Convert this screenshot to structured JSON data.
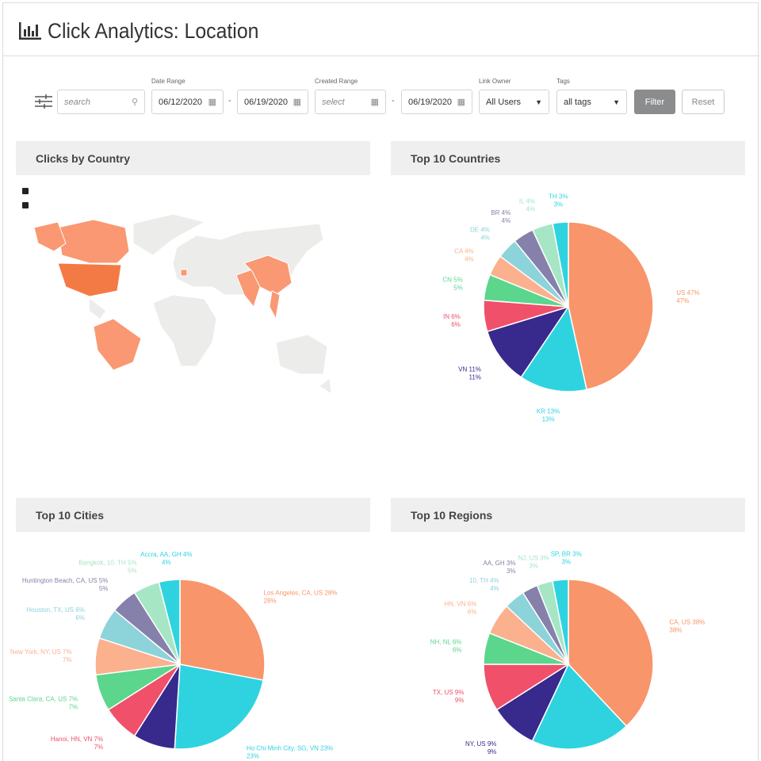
{
  "header": {
    "title": "Click Analytics: Location"
  },
  "filters": {
    "search_placeholder": "search",
    "date_range_label": "Date Range",
    "date_from": "06/12/2020",
    "date_to": "06/19/2020",
    "created_range_label": "Created Range",
    "created_from_placeholder": "select",
    "created_to": "06/19/2020",
    "link_owner_label": "Link Owner",
    "link_owner_value": "All Users",
    "tags_label": "Tags",
    "tags_value": "all tags",
    "filter_button": "Filter",
    "reset_button": "Reset",
    "separator": "-"
  },
  "panels": {
    "map": "Clicks by Country",
    "countries": "Top 10 Countries",
    "cities": "Top 10 Cities",
    "regions": "Top 10 Regions"
  },
  "colors": [
    "#f8956a",
    "#2fd3e0",
    "#38298c",
    "#f0506a",
    "#5bd68c",
    "#fbb08e",
    "#8dd3da",
    "#8581ab",
    "#a6e6c5",
    "#2fd3e0"
  ],
  "chart_data": [
    {
      "id": "countries",
      "type": "pie",
      "title": "Top 10 Countries",
      "slices": [
        {
          "label": "US",
          "value": 47
        },
        {
          "label": "KR",
          "value": 13
        },
        {
          "label": "VN",
          "value": 11
        },
        {
          "label": "IN",
          "value": 6
        },
        {
          "label": "CN",
          "value": 5
        },
        {
          "label": "CA",
          "value": 4
        },
        {
          "label": "DE",
          "value": 4
        },
        {
          "label": "BR",
          "value": 4
        },
        {
          "label": "IL",
          "value": 4
        },
        {
          "label": "TH",
          "value": 3
        }
      ]
    },
    {
      "id": "cities",
      "type": "pie",
      "title": "Top 10 Cities",
      "slices": [
        {
          "label": "Los Angeles, CA, US",
          "value": 28
        },
        {
          "label": "Ho Chi Minh City, SG, VN",
          "value": 23
        },
        {
          "label": "",
          "value": 8
        },
        {
          "label": "Hanoi, HN, VN",
          "value": 7
        },
        {
          "label": "Santa Clara, CA, US",
          "value": 7
        },
        {
          "label": "New York, NY, US",
          "value": 7
        },
        {
          "label": "Houston, TX, US",
          "value": 6
        },
        {
          "label": "Huntington Beach, CA, US",
          "value": 5
        },
        {
          "label": "Bangkok, 10, TH",
          "value": 5
        },
        {
          "label": "Accra, AA, GH",
          "value": 4
        }
      ]
    },
    {
      "id": "regions",
      "type": "pie",
      "title": "Top 10 Regions",
      "slices": [
        {
          "label": "CA, US",
          "value": 38
        },
        {
          "label": "",
          "value": 19
        },
        {
          "label": "NY, US",
          "value": 9
        },
        {
          "label": "TX, US",
          "value": 9
        },
        {
          "label": "NH, NL",
          "value": 6
        },
        {
          "label": "HN, VN",
          "value": 6
        },
        {
          "label": "10, TH",
          "value": 4
        },
        {
          "label": "AA, GH",
          "value": 3
        },
        {
          "label": "NJ, US",
          "value": 3
        },
        {
          "label": "SP, BR",
          "value": 3
        }
      ]
    }
  ]
}
